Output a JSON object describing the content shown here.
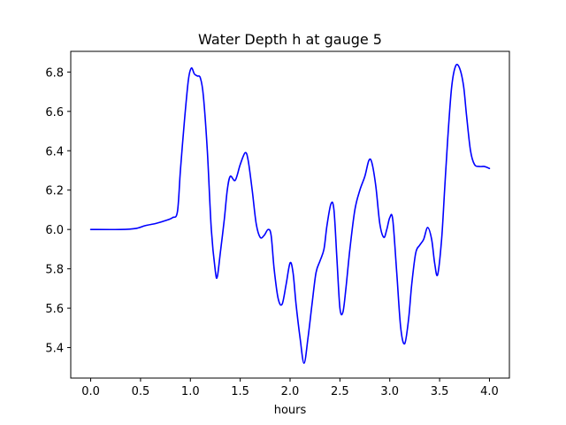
{
  "chart_data": {
    "type": "line",
    "title": "Water Depth h at gauge 5",
    "xlabel": "hours",
    "ylabel": "",
    "xlim": [
      -0.2,
      4.2
    ],
    "ylim": [
      5.245,
      6.905
    ],
    "xticks": [
      0.0,
      0.5,
      1.0,
      1.5,
      2.0,
      2.5,
      3.0,
      3.5,
      4.0
    ],
    "xtick_labels": [
      "0.0",
      "0.5",
      "1.0",
      "1.5",
      "2.0",
      "2.5",
      "3.0",
      "3.5",
      "4.0"
    ],
    "yticks": [
      5.4,
      5.6,
      5.8,
      6.0,
      6.2,
      6.4,
      6.6,
      6.8
    ],
    "ytick_labels": [
      "5.4",
      "5.6",
      "5.8",
      "6.0",
      "6.2",
      "6.4",
      "6.6",
      "6.8"
    ],
    "grid": false,
    "legend": "none",
    "series": [
      {
        "color": "#0000ff",
        "x": [
          0.0,
          0.3,
          0.45,
          0.55,
          0.65,
          0.75,
          0.82,
          0.87,
          0.9,
          0.94,
          0.98,
          1.01,
          1.04,
          1.07,
          1.1,
          1.13,
          1.17,
          1.21,
          1.25,
          1.27,
          1.3,
          1.34,
          1.37,
          1.4,
          1.45,
          1.5,
          1.55,
          1.58,
          1.62,
          1.66,
          1.7,
          1.74,
          1.78,
          1.81,
          1.84,
          1.88,
          1.92,
          1.96,
          2.0,
          2.03,
          2.06,
          2.1,
          2.14,
          2.18,
          2.22,
          2.26,
          2.3,
          2.34,
          2.37,
          2.41,
          2.44,
          2.47,
          2.5,
          2.53,
          2.56,
          2.6,
          2.65,
          2.7,
          2.75,
          2.79,
          2.82,
          2.86,
          2.9,
          2.94,
          2.97,
          3.0,
          3.03,
          3.07,
          3.11,
          3.15,
          3.19,
          3.22,
          3.26,
          3.3,
          3.34,
          3.38,
          3.42,
          3.45,
          3.48,
          3.52,
          3.55,
          3.58,
          3.62,
          3.66,
          3.7,
          3.74,
          3.77,
          3.81,
          3.85,
          3.9,
          3.95,
          4.0
        ],
        "values": [
          6.0,
          6.0,
          6.005,
          6.02,
          6.03,
          6.045,
          6.06,
          6.09,
          6.3,
          6.55,
          6.76,
          6.82,
          6.79,
          6.78,
          6.77,
          6.68,
          6.4,
          6.0,
          5.79,
          5.76,
          5.88,
          6.05,
          6.2,
          6.27,
          6.25,
          6.33,
          6.39,
          6.35,
          6.2,
          6.03,
          5.96,
          5.97,
          6.0,
          5.97,
          5.8,
          5.65,
          5.62,
          5.72,
          5.83,
          5.78,
          5.62,
          5.45,
          5.32,
          5.45,
          5.62,
          5.78,
          5.84,
          5.9,
          6.02,
          6.13,
          6.1,
          5.85,
          5.6,
          5.58,
          5.7,
          5.9,
          6.1,
          6.2,
          6.27,
          6.35,
          6.34,
          6.22,
          6.03,
          5.96,
          6.0,
          6.06,
          6.05,
          5.78,
          5.5,
          5.42,
          5.55,
          5.72,
          5.88,
          5.92,
          5.95,
          6.01,
          5.95,
          5.83,
          5.77,
          5.95,
          6.2,
          6.45,
          6.72,
          6.83,
          6.82,
          6.73,
          6.58,
          6.4,
          6.33,
          6.32,
          6.32,
          6.31
        ]
      }
    ]
  }
}
